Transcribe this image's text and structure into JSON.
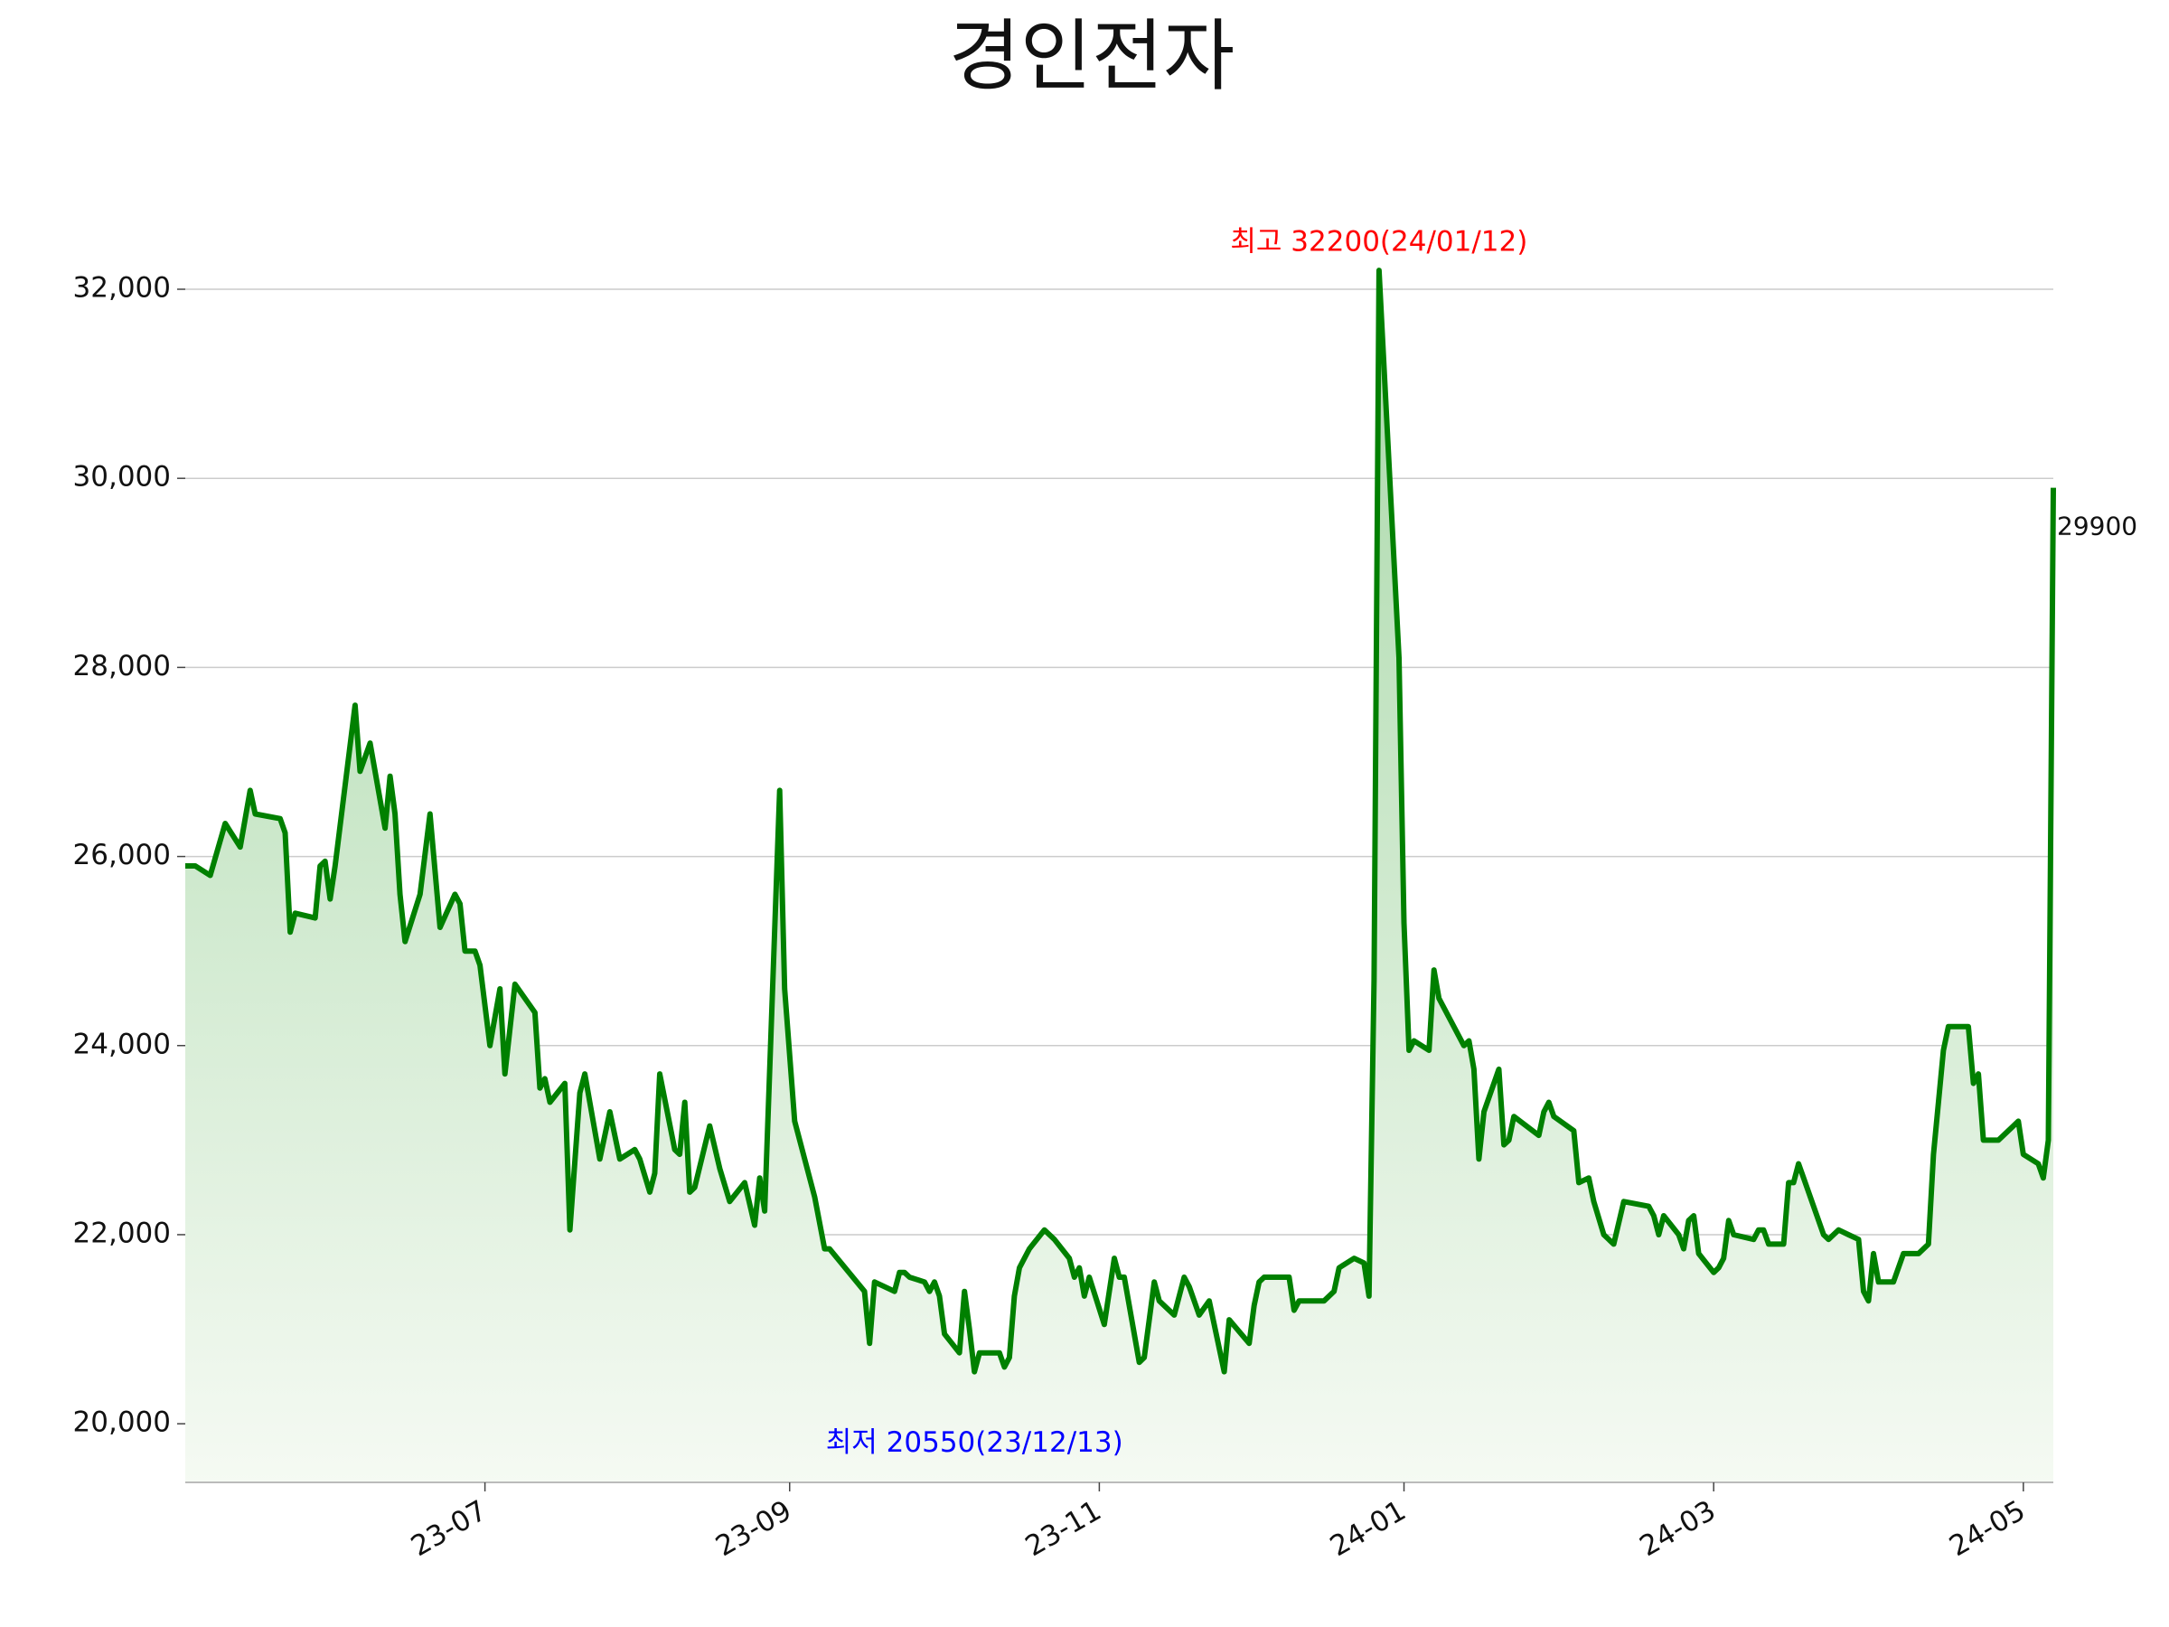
{
  "chart_data": {
    "type": "line",
    "title": "경인전자",
    "color": "#008000",
    "x": [
      0,
      2,
      5,
      8,
      11,
      13,
      14,
      19,
      20,
      21,
      22,
      26,
      27,
      28,
      29,
      30,
      34,
      35,
      37,
      40,
      41,
      42,
      43,
      44,
      47,
      49,
      51,
      54,
      55,
      56,
      58,
      59,
      61,
      63,
      64,
      66,
      70,
      71,
      72,
      73,
      76,
      77,
      79,
      80,
      83,
      85,
      87,
      90,
      91,
      93,
      94,
      95,
      98,
      99,
      100,
      101,
      102,
      105,
      107,
      109,
      112,
      114,
      115,
      116,
      119,
      120,
      122,
      126,
      128,
      129,
      136,
      137,
      138,
      142,
      143,
      144,
      145,
      148,
      149,
      150,
      151,
      152,
      155,
      156,
      157,
      158,
      159,
      163,
      164,
      165,
      166,
      167,
      169,
      172,
      174,
      177,
      178,
      179,
      180,
      181,
      184,
      186,
      187,
      188,
      191,
      192,
      194,
      195,
      198,
      200,
      201,
      203,
      205,
      208,
      209,
      213,
      214,
      215,
      216,
      221,
      222,
      223,
      228,
      230,
      231,
      234,
      236,
      237,
      238,
      239,
      243,
      244,
      245,
      246,
      249,
      250,
      251,
      256,
      257,
      258,
      259,
      260,
      263,
      264,
      265,
      266,
      271,
      272,
      273,
      274,
      278,
      279,
      281,
      282,
      284,
      286,
      288,
      293,
      294,
      295,
      296,
      299,
      300,
      301,
      302,
      303,
      306,
      307,
      308,
      309,
      310,
      314,
      315,
      316,
      317,
      320,
      321,
      322,
      323,
      324,
      328,
      329,
      331,
      333,
      335,
      336,
      337,
      338,
      339,
      342,
      344,
      347,
      349,
      350,
      352,
      353,
      357,
      358,
      359,
      360,
      363,
      366,
      367,
      368,
      371,
      372,
      373,
      374
    ],
    "values": [
      25900,
      25900,
      25800,
      26350,
      26100,
      26700,
      26450,
      26400,
      26250,
      25200,
      25400,
      25350,
      25900,
      25950,
      25550,
      25900,
      27600,
      26900,
      27200,
      26300,
      26850,
      26450,
      25600,
      25100,
      25600,
      26450,
      25250,
      25600,
      25500,
      25000,
      25000,
      24850,
      24000,
      24600,
      23700,
      24650,
      24350,
      23550,
      23650,
      23400,
      23600,
      22050,
      23500,
      23700,
      22800,
      23300,
      22800,
      22900,
      22800,
      22450,
      22650,
      23700,
      22900,
      22850,
      23400,
      22450,
      22500,
      23150,
      22700,
      22350,
      22550,
      22100,
      22600,
      22250,
      26700,
      24600,
      23200,
      22400,
      21850,
      21850,
      21400,
      20850,
      21500,
      21400,
      21600,
      21600,
      21550,
      21500,
      21400,
      21500,
      21350,
      20950,
      20750,
      21400,
      21000,
      20550,
      20750,
      20750,
      20600,
      20700,
      21350,
      21650,
      21850,
      22050,
      21950,
      21750,
      21550,
      21650,
      21350,
      21550,
      21050,
      21750,
      21550,
      21550,
      20650,
      20700,
      21500,
      21300,
      21150,
      21550,
      21450,
      21150,
      21300,
      20550,
      21100,
      20850,
      21250,
      21500,
      21550,
      21550,
      21200,
      21300,
      21300,
      21400,
      21650,
      21750,
      21700,
      21350,
      24700,
      32200,
      28100,
      25300,
      23950,
      24050,
      23950,
      24800,
      24500,
      24000,
      24050,
      23750,
      22800,
      23300,
      23750,
      22950,
      23000,
      23250,
      23050,
      23300,
      23400,
      23250,
      23100,
      22550,
      22600,
      22350,
      22000,
      21900,
      22350,
      22300,
      22200,
      22000,
      22200,
      22000,
      21850,
      22150,
      22200,
      21800,
      21600,
      21650,
      21750,
      22150,
      22000,
      21950,
      22050,
      22050,
      21900,
      21900,
      22550,
      22550,
      22750,
      22600,
      22000,
      21950,
      22050,
      22000,
      21950,
      21400,
      21300,
      21800,
      21500,
      21500,
      21800,
      21800,
      21900,
      22850,
      23950,
      24200,
      24200,
      23600,
      23700,
      23000,
      23000,
      23150,
      23200,
      22850,
      22750,
      22600,
      23000,
      29900
    ],
    "xlim": [
      0,
      374
    ],
    "xticks": [
      {
        "value": 60,
        "label": "23-07"
      },
      {
        "value": 121,
        "label": "23-09"
      },
      {
        "value": 183,
        "label": "23-11"
      },
      {
        "value": 244,
        "label": "24-01"
      },
      {
        "value": 306,
        "label": "24-03"
      },
      {
        "value": 368,
        "label": "24-05"
      }
    ],
    "ylim": [
      19380,
      33000
    ],
    "yticks": [
      {
        "value": 20000,
        "label": "20,000"
      },
      {
        "value": 22000,
        "label": "22,000"
      },
      {
        "value": 24000,
        "label": "24,000"
      },
      {
        "value": 26000,
        "label": "26,000"
      },
      {
        "value": 28000,
        "label": "28,000"
      },
      {
        "value": 30000,
        "label": "30,000"
      },
      {
        "value": 32000,
        "label": "32,000"
      }
    ],
    "grid": true,
    "annotations": [
      {
        "text": "최고 32200(24/01/12)",
        "color": "#ff0000",
        "at": "max"
      },
      {
        "text": "최저 20550(23/12/13)",
        "color": "#0000ff",
        "at": "min"
      }
    ]
  }
}
